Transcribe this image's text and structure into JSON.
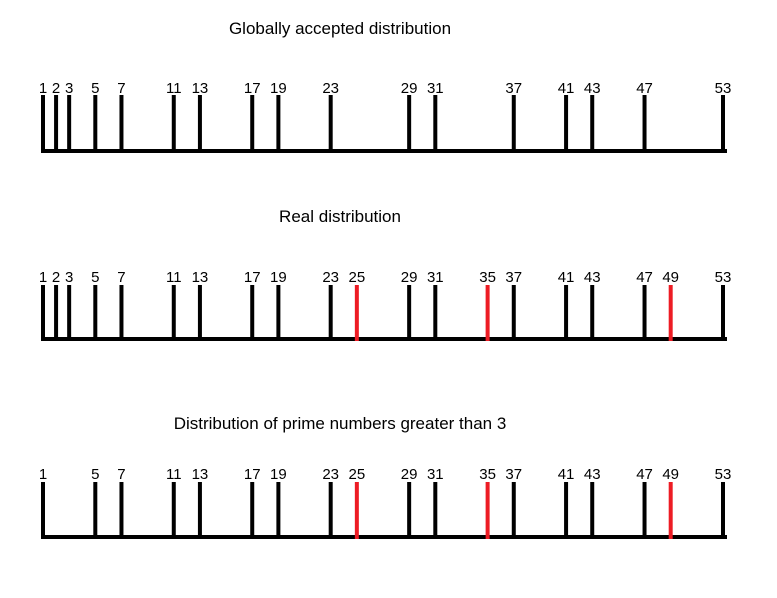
{
  "colors": {
    "normal": "#000000",
    "highlight": "#ed1c24"
  },
  "diagrams": [
    {
      "title": "Globally accepted distribution",
      "ticks": [
        {
          "n": 1,
          "label": "1"
        },
        {
          "n": 2,
          "label": "2"
        },
        {
          "n": 3,
          "label": "3"
        },
        {
          "n": 5,
          "label": "5"
        },
        {
          "n": 7,
          "label": "7"
        },
        {
          "n": 11,
          "label": "11"
        },
        {
          "n": 13,
          "label": "13"
        },
        {
          "n": 17,
          "label": "17"
        },
        {
          "n": 19,
          "label": "19"
        },
        {
          "n": 23,
          "label": "23"
        },
        {
          "n": 29,
          "label": "29"
        },
        {
          "n": 31,
          "label": "31"
        },
        {
          "n": 37,
          "label": "37"
        },
        {
          "n": 41,
          "label": "41"
        },
        {
          "n": 43,
          "label": "43"
        },
        {
          "n": 47,
          "label": "47"
        },
        {
          "n": 53,
          "label": "53"
        }
      ]
    },
    {
      "title": "Real distribution",
      "ticks": [
        {
          "n": 1,
          "label": "1"
        },
        {
          "n": 2,
          "label": "2"
        },
        {
          "n": 3,
          "label": "3"
        },
        {
          "n": 5,
          "label": "5"
        },
        {
          "n": 7,
          "label": "7"
        },
        {
          "n": 11,
          "label": "11"
        },
        {
          "n": 13,
          "label": "13"
        },
        {
          "n": 17,
          "label": "17"
        },
        {
          "n": 19,
          "label": "19"
        },
        {
          "n": 23,
          "label": "23"
        },
        {
          "n": 25,
          "label": "25",
          "highlight": true
        },
        {
          "n": 29,
          "label": "29"
        },
        {
          "n": 31,
          "label": "31"
        },
        {
          "n": 35,
          "label": "35",
          "highlight": true
        },
        {
          "n": 37,
          "label": "37"
        },
        {
          "n": 41,
          "label": "41"
        },
        {
          "n": 43,
          "label": "43"
        },
        {
          "n": 47,
          "label": "47"
        },
        {
          "n": 49,
          "label": "49",
          "highlight": true
        },
        {
          "n": 53,
          "label": "53"
        }
      ]
    },
    {
      "title": "Distribution of prime numbers greater than 3",
      "ticks": [
        {
          "n": 1,
          "label": "1"
        },
        {
          "n": 5,
          "label": "5"
        },
        {
          "n": 7,
          "label": "7"
        },
        {
          "n": 11,
          "label": "11"
        },
        {
          "n": 13,
          "label": "13"
        },
        {
          "n": 17,
          "label": "17"
        },
        {
          "n": 19,
          "label": "19"
        },
        {
          "n": 23,
          "label": "23"
        },
        {
          "n": 25,
          "label": "25",
          "highlight": true
        },
        {
          "n": 29,
          "label": "29"
        },
        {
          "n": 31,
          "label": "31"
        },
        {
          "n": 35,
          "label": "35",
          "highlight": true
        },
        {
          "n": 37,
          "label": "37"
        },
        {
          "n": 41,
          "label": "41"
        },
        {
          "n": 43,
          "label": "43"
        },
        {
          "n": 47,
          "label": "47"
        },
        {
          "n": 49,
          "label": "49",
          "highlight": true
        },
        {
          "n": 53,
          "label": "53"
        }
      ]
    }
  ]
}
